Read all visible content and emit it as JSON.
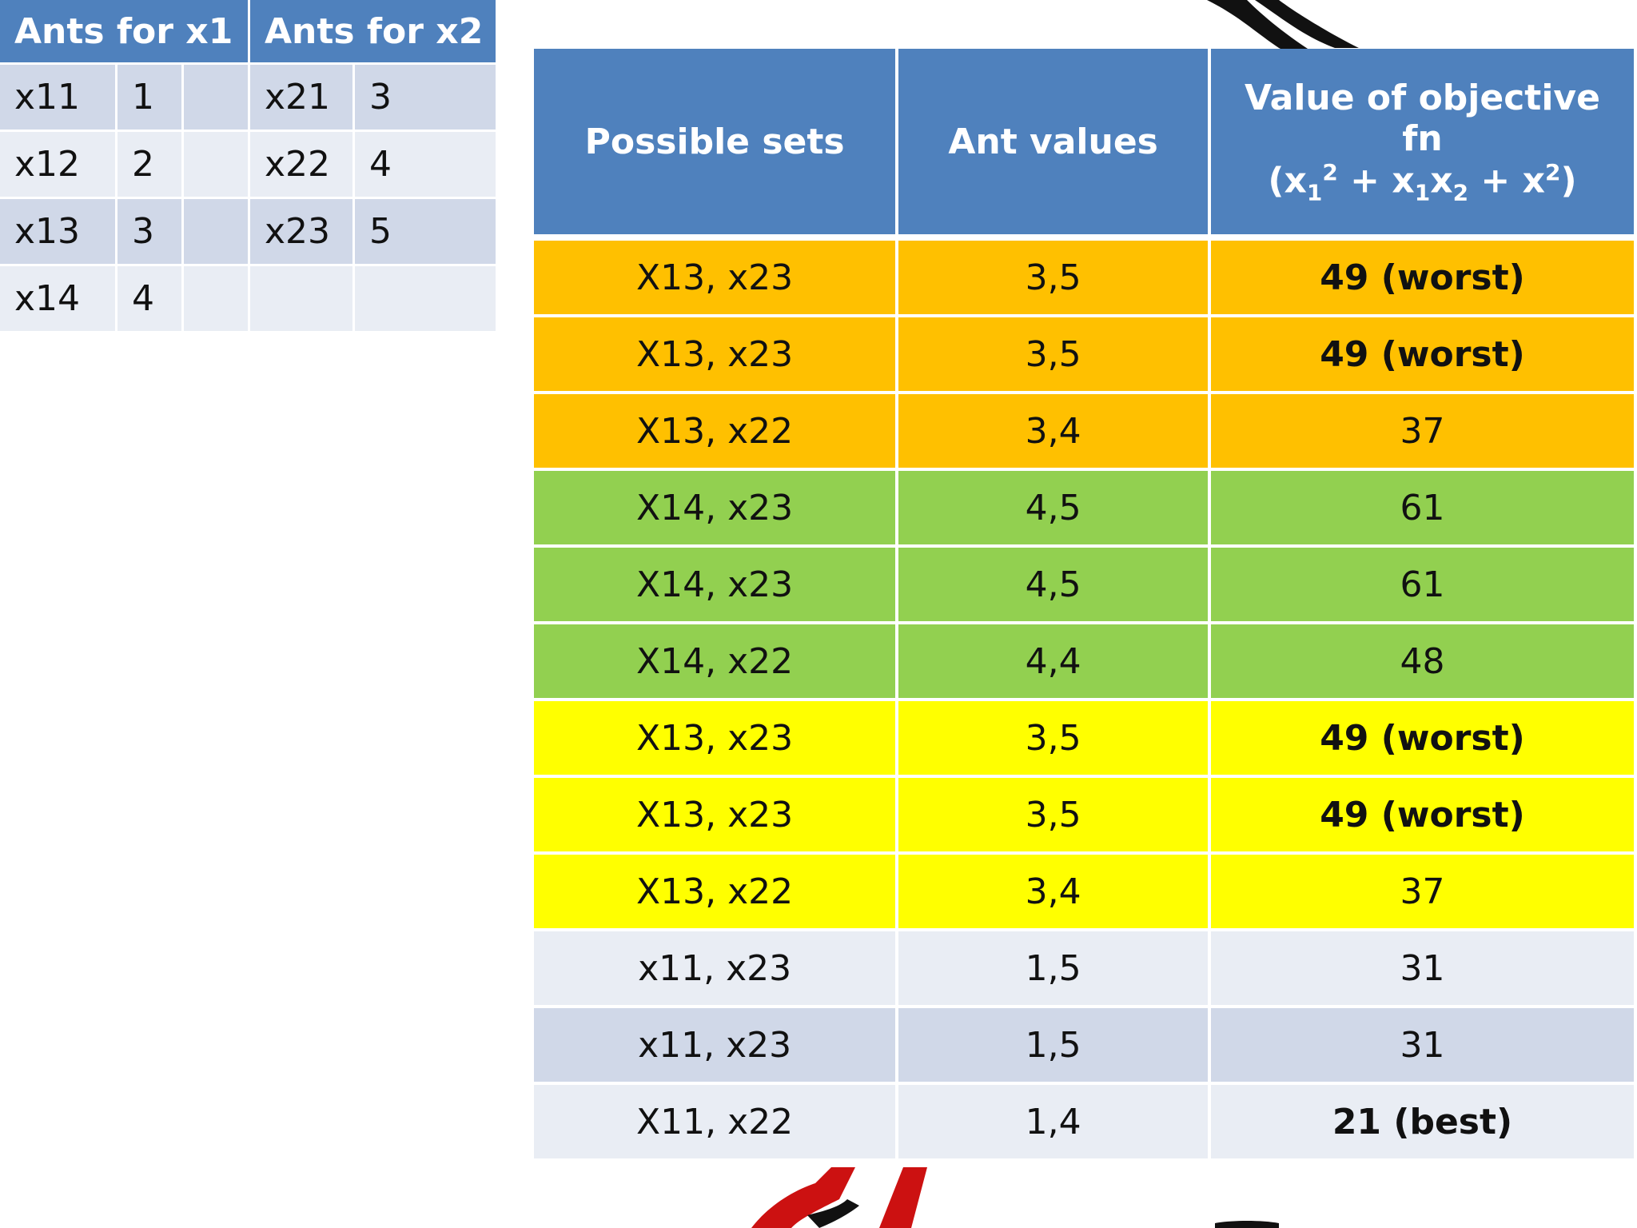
{
  "ants_table": {
    "headers": [
      "Ants for x1",
      "Ants for x2"
    ],
    "rows": [
      {
        "x1_name": "x11",
        "x1_val": "1",
        "x2_name": "x21",
        "x2_val": "3"
      },
      {
        "x1_name": "x12",
        "x1_val": "2",
        "x2_name": "x22",
        "x2_val": "4"
      },
      {
        "x1_name": "x13",
        "x1_val": "3",
        "x2_name": "x23",
        "x2_val": "5"
      },
      {
        "x1_name": "x14",
        "x1_val": "4",
        "x2_name": "",
        "x2_val": ""
      }
    ]
  },
  "sets_table": {
    "headers": {
      "possible_sets": "Possible sets",
      "ant_values": "Ant values",
      "objective_line1": "Value of objective fn",
      "objective_line2_parts": [
        "(x",
        "1",
        "2",
        " + x",
        "1",
        "x",
        "2",
        " + x",
        "2",
        ")"
      ]
    },
    "rows": [
      {
        "set": "X13, x23",
        "ants": "3,5",
        "value": "49 (worst)",
        "bold": true,
        "color": "#ffc000"
      },
      {
        "set": "X13, x23",
        "ants": "3,5",
        "value": "49 (worst)",
        "bold": true,
        "color": "#ffc000"
      },
      {
        "set": "X13, x22",
        "ants": "3,4",
        "value": "37",
        "bold": false,
        "color": "#ffc000"
      },
      {
        "set": "X14, x23",
        "ants": "4,5",
        "value": "61",
        "bold": false,
        "color": "#92d050"
      },
      {
        "set": "X14, x23",
        "ants": "4,5",
        "value": "61",
        "bold": false,
        "color": "#92d050"
      },
      {
        "set": "X14, x22",
        "ants": "4,4",
        "value": "48",
        "bold": false,
        "color": "#92d050"
      },
      {
        "set": "X13, x23",
        "ants": "3,5",
        "value": "49 (worst)",
        "bold": true,
        "color": "#ffff00"
      },
      {
        "set": "X13, x23",
        "ants": "3,5",
        "value": "49 (worst)",
        "bold": true,
        "color": "#ffff00"
      },
      {
        "set": "X13, x22",
        "ants": "3,4",
        "value": "37",
        "bold": false,
        "color": "#ffff00"
      },
      {
        "set": "x11, x23",
        "ants": "1,5",
        "value": "31",
        "bold": false,
        "color": "#e9edf4"
      },
      {
        "set": "x11, x23",
        "ants": "1,5",
        "value": "31",
        "bold": false,
        "color": "#d0d8e8"
      },
      {
        "set": "X11, x22",
        "ants": "1,4",
        "value": "21 (best)",
        "bold": true,
        "color": "#e9edf4"
      }
    ]
  },
  "decor": {
    "top_stroke_color": "#111111",
    "bottom_stroke_color": "#cc1111"
  }
}
